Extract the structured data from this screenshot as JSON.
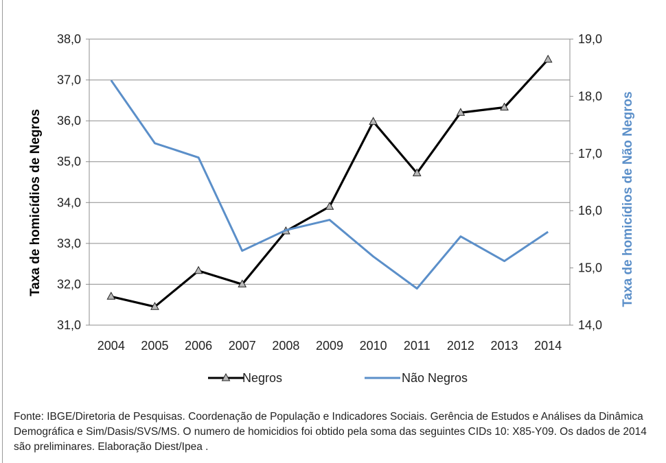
{
  "chart_data": {
    "type": "line",
    "categories": [
      "2004",
      "2005",
      "2006",
      "2007",
      "2008",
      "2009",
      "2010",
      "2011",
      "2012",
      "2013",
      "2014"
    ],
    "series": [
      {
        "name": "Negros",
        "axis": "left",
        "color": "#000000",
        "marker": "triangle",
        "values": [
          31.7,
          31.45,
          32.33,
          32.0,
          33.3,
          33.9,
          35.98,
          34.72,
          36.2,
          36.33,
          37.5
        ]
      },
      {
        "name": "Não Negros",
        "axis": "right",
        "color": "#5b8fc9",
        "marker": "none",
        "values": [
          18.28,
          17.18,
          16.93,
          15.3,
          15.66,
          15.84,
          15.2,
          14.64,
          15.55,
          15.12,
          15.63
        ]
      }
    ],
    "ylabel_left": "Taxa de homicídios de Negros",
    "ylabel_right": "Taxa de homicídios de Não  Negros",
    "ylim_left": [
      31.0,
      38.0
    ],
    "ylim_right": [
      14.0,
      19.0
    ],
    "yticks_left": [
      "31,0",
      "32,0",
      "33,0",
      "34,0",
      "35,0",
      "36,0",
      "37,0",
      "38,0"
    ],
    "yticks_right": [
      "14,0",
      "15,0",
      "16,0",
      "17,0",
      "18,0",
      "19,0"
    ],
    "grid": true,
    "legend_position": "bottom"
  },
  "source_note": "Fonte: IBGE/Diretoria de Pesquisas. Coordenação de População e Indicadores Sociais. Gerência de Estudos e Análises da Dinâmica Demográfica e Sim/Dasis/SVS/MS. O numero de homicidios foi obtido pela soma das seguintes CIDs 10: X85-Y09.  Os dados de 2014  são preliminares. Elaboração Diest/Ipea ."
}
